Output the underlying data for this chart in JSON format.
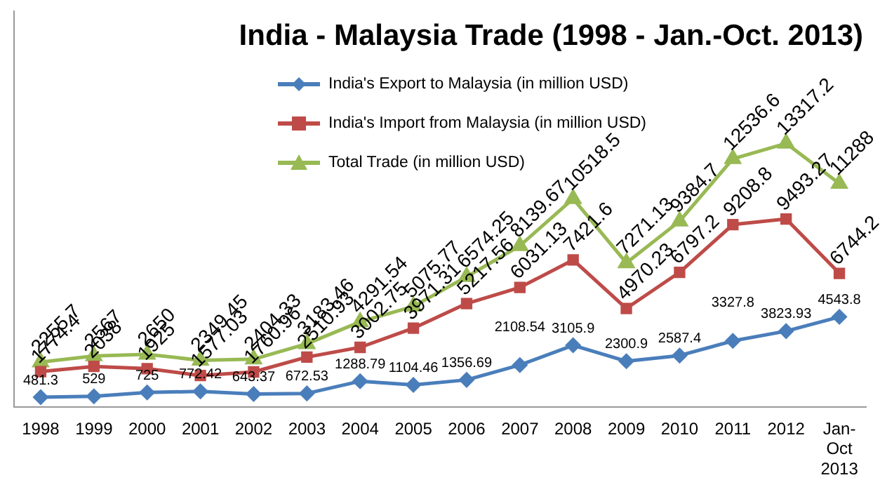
{
  "chart_data": {
    "type": "line",
    "title": "India - Malaysia  Trade (1998 - Jan.-Oct. 2013)",
    "categories": [
      "1998",
      "1999",
      "2000",
      "2001",
      "2002",
      "2003",
      "2004",
      "2005",
      "2006",
      "2007",
      "2008",
      "2009",
      "2010",
      "2011",
      "2012",
      "Jan-Oct 2013"
    ],
    "series": [
      {
        "name": "India's Export to Malaysia (in million USD)",
        "color": "#4a7ebb",
        "marker": "diamond",
        "values": [
          481.3,
          529,
          725,
          772.42,
          643.37,
          672.53,
          1288.79,
          1104.46,
          1356.69,
          2108.54,
          3105.9,
          2300.9,
          2587.4,
          3327.8,
          3823.93,
          4543.8
        ]
      },
      {
        "name": "India's Import from Malaysia (in million USD)",
        "color": "#be4b48",
        "marker": "square",
        "values": [
          1774.4,
          2038,
          1925,
          1577.03,
          1760.96,
          2510.93,
          3002.75,
          3971.31,
          5217.56,
          6031.13,
          7421.6,
          4970.23,
          6797.2,
          9208.8,
          9493.27,
          6744.2
        ]
      },
      {
        "name": "Total Trade (in million USD)",
        "color": "#98b954",
        "marker": "triangle",
        "values": [
          2255.7,
          2567,
          2650,
          2349.45,
          2404.33,
          3183.46,
          4291.54,
          5075.77,
          6574.25,
          8139.67,
          10518.5,
          7271.13,
          9384.7,
          12536.6,
          13317.2,
          11288
        ]
      }
    ],
    "ylim": [
      0,
      20000
    ],
    "tick_labels": "x",
    "grid": false,
    "legend": "top right",
    "data_labels": true
  }
}
